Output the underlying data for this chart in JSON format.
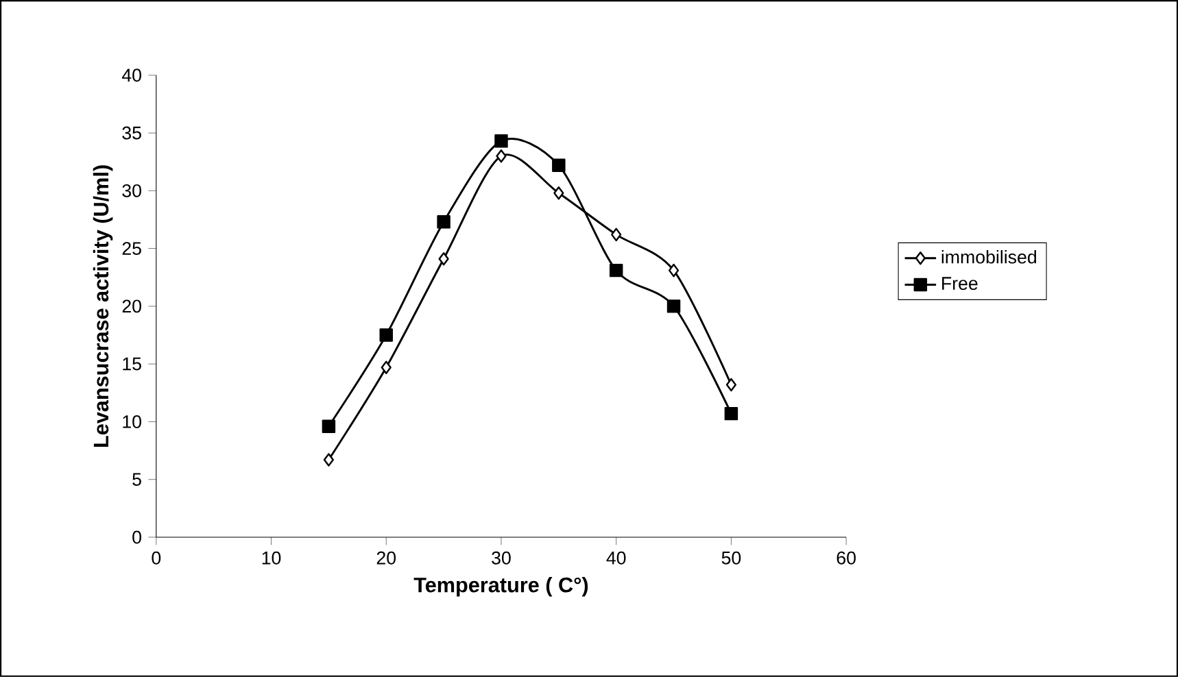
{
  "chart_data": {
    "type": "line",
    "xlabel": "Temperature ( C°)",
    "ylabel": "Levansucrase activity (U/ml)",
    "x": [
      15,
      20,
      25,
      30,
      35,
      40,
      45,
      50
    ],
    "series": [
      {
        "name": "immobilised",
        "color": "#000000",
        "marker": "diamond",
        "values": [
          6.7,
          14.7,
          24.1,
          33.0,
          29.8,
          26.2,
          23.1,
          13.2
        ]
      },
      {
        "name": "Free",
        "color": "#000000",
        "marker": "square",
        "values": [
          9.6,
          17.5,
          27.3,
          34.3,
          32.2,
          23.1,
          20.0,
          10.7
        ]
      }
    ],
    "xlim": [
      0,
      60
    ],
    "xticks": [
      0,
      10,
      20,
      30,
      40,
      50,
      60
    ],
    "ylim": [
      0,
      40
    ],
    "yticks": [
      0,
      5,
      10,
      15,
      20,
      25,
      30,
      35,
      40
    ],
    "grid": false,
    "legend": "right",
    "line_style": "solid"
  }
}
